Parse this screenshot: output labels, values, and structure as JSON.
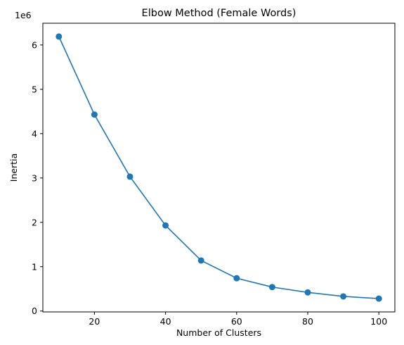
{
  "chart_data": {
    "type": "line",
    "title": "Elbow Method (Female Words)",
    "xlabel": "Number of Clusters",
    "ylabel": "Inertia",
    "y_offset_label": "1e6",
    "x": [
      10,
      20,
      30,
      40,
      50,
      60,
      70,
      80,
      90,
      100
    ],
    "series": [
      {
        "values": [
          6.19,
          4.43,
          3.03,
          1.93,
          1.14,
          0.74,
          0.54,
          0.42,
          0.33,
          0.28
        ],
        "color": "#1f77b4",
        "marker": "circle"
      }
    ],
    "xlim": [
      5.5,
      104.5
    ],
    "ylim": [
      -0.02,
      6.49
    ],
    "x_ticks": [
      20,
      40,
      60,
      80,
      100
    ],
    "y_ticks": [
      0,
      1,
      2,
      3,
      4,
      5,
      6
    ],
    "grid": false,
    "legend": "none"
  }
}
